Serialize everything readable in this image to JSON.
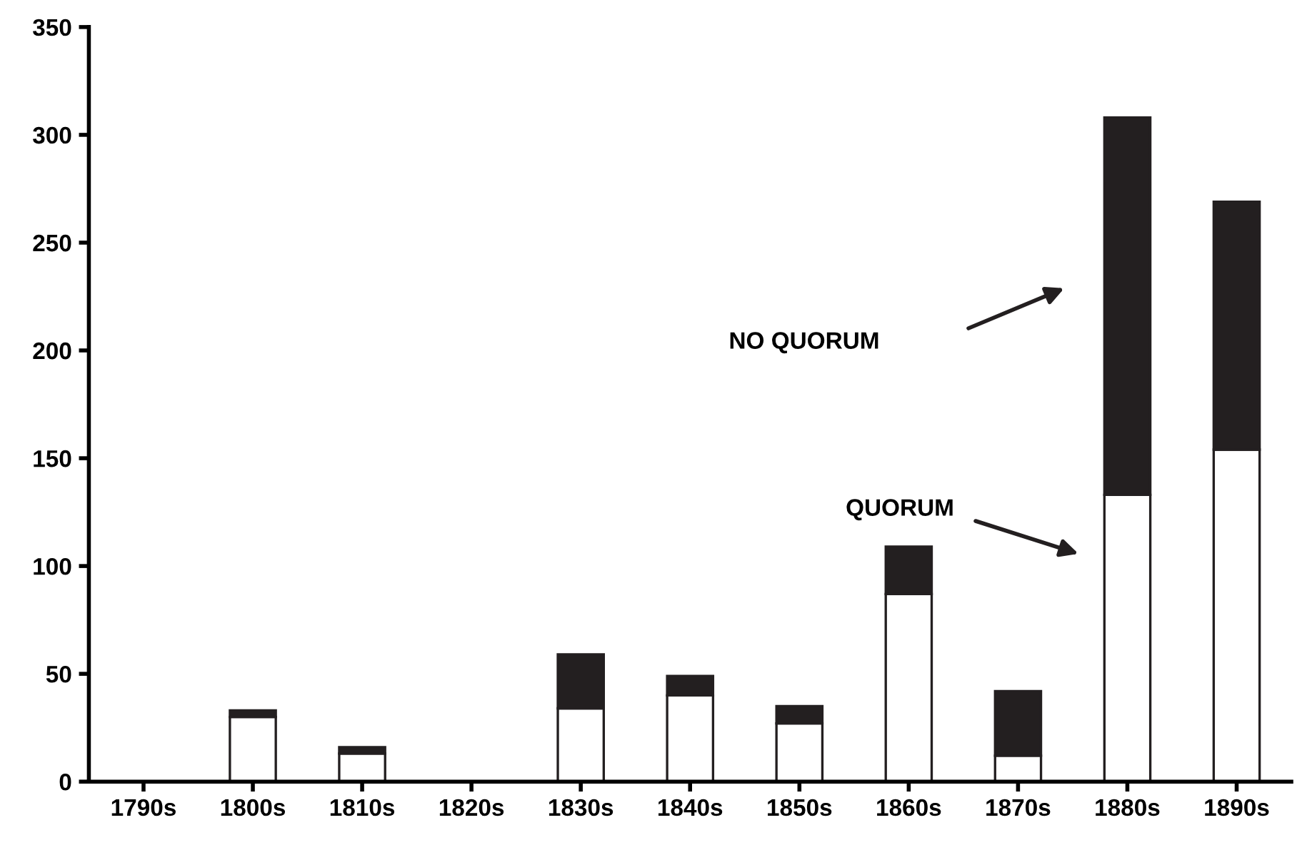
{
  "chart_data": {
    "type": "bar",
    "stacked": true,
    "categories": [
      "1790s",
      "1800s",
      "1810s",
      "1820s",
      "1830s",
      "1840s",
      "1850s",
      "1860s",
      "1870s",
      "1880s",
      "1890s"
    ],
    "series": [
      {
        "color": "#ffffff",
        "values": [
          0,
          30,
          13,
          0,
          34,
          40,
          27,
          87,
          12,
          133,
          154
        ]
      },
      {
        "color": "#231f20",
        "values": [
          0,
          3,
          3,
          0,
          25,
          9,
          8,
          22,
          30,
          175,
          115
        ]
      }
    ],
    "ylim": [
      0,
      350
    ],
    "yticks": [
      0,
      50,
      100,
      150,
      200,
      250,
      300,
      350
    ],
    "annotations": [
      "NO QUORUM",
      "QUORUM"
    ]
  }
}
